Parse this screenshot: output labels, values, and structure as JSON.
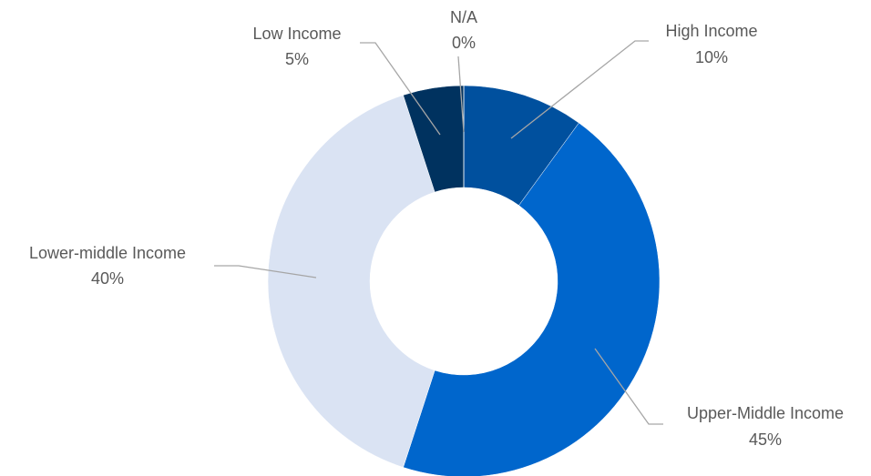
{
  "chart_data": {
    "type": "donut",
    "categories": [
      "High Income",
      "Upper-Middle Income",
      "Lower-middle Income",
      "Low Income",
      "N/A"
    ],
    "values": [
      10,
      45,
      40,
      5,
      0
    ],
    "value_labels": [
      "10%",
      "45%",
      "40%",
      "5%",
      "0%"
    ],
    "colors": [
      "#00509e",
      "#0066cc",
      "#dae3f3",
      "#00325f",
      "#1f4e79"
    ]
  }
}
